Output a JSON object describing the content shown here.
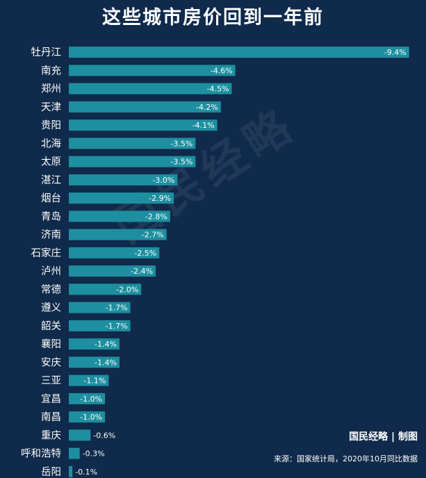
{
  "chart_data": {
    "type": "bar",
    "orientation": "horizontal",
    "title": "这些城市房价回到一年前",
    "categories": [
      "牡丹江",
      "南充",
      "郑州",
      "天津",
      "贵阳",
      "北海",
      "太原",
      "湛江",
      "烟台",
      "青岛",
      "济南",
      "石家庄",
      "泸州",
      "常德",
      "遵义",
      "韶关",
      "襄阳",
      "安庆",
      "三亚",
      "宜昌",
      "南昌",
      "重庆",
      "呼和浩特",
      "岳阳"
    ],
    "values": [
      -9.4,
      -4.6,
      -4.5,
      -4.2,
      -4.1,
      -3.5,
      -3.5,
      -3.0,
      -2.9,
      -2.8,
      -2.7,
      -2.5,
      -2.4,
      -2.0,
      -1.7,
      -1.7,
      -1.4,
      -1.4,
      -1.1,
      -1.0,
      -1.0,
      -0.6,
      -0.3,
      -0.1
    ],
    "value_labels": [
      "-9.4%",
      "-4.6%",
      "-4.5%",
      "-4.2%",
      "-4.1%",
      "-3.5%",
      "-3.5%",
      "-3.0%",
      "-2.9%",
      "-2.8%",
      "-2.7%",
      "-2.5%",
      "-2.4%",
      "-2.0%",
      "-1.7%",
      "-1.7%",
      "-1.4%",
      "-1.4%",
      "-1.1%",
      "-1.0%",
      "-1.0%",
      "-0.6%",
      "-0.3%",
      "-0.1%"
    ],
    "unit": "%",
    "grid": false,
    "legend": "none",
    "bar_color": "#1e8fa0",
    "background": "#0f2a4a"
  },
  "watermark": "国民经略",
  "brand": "国民经略 | 制图",
  "source": "来源：国家统计局，2020年10月同比数据"
}
